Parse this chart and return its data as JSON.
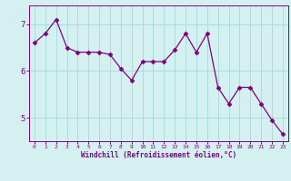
{
  "x": [
    0,
    1,
    2,
    3,
    4,
    5,
    6,
    7,
    8,
    9,
    10,
    11,
    12,
    13,
    14,
    15,
    16,
    17,
    18,
    19,
    20,
    21,
    22,
    23
  ],
  "y": [
    6.6,
    6.8,
    7.1,
    6.5,
    6.4,
    6.4,
    6.4,
    6.35,
    6.05,
    5.8,
    6.2,
    6.2,
    6.2,
    6.45,
    6.8,
    6.4,
    6.8,
    5.65,
    5.3,
    5.65,
    5.65,
    5.3,
    4.95,
    4.65
  ],
  "line_color": "#800080",
  "marker": "D",
  "marker_size": 2.5,
  "bg_color": "#d5f0f0",
  "grid_color": "#aadddd",
  "xlabel": "Windchill (Refroidissement éolien,°C)",
  "xlabel_color": "#800080",
  "tick_color": "#800080",
  "spine_color": "#800080",
  "ylim": [
    4.5,
    7.4
  ],
  "xlim": [
    -0.5,
    23.5
  ],
  "yticks": [
    5,
    6,
    7
  ],
  "xticks": [
    0,
    1,
    2,
    3,
    4,
    5,
    6,
    7,
    8,
    9,
    10,
    11,
    12,
    13,
    14,
    15,
    16,
    17,
    18,
    19,
    20,
    21,
    22,
    23
  ]
}
